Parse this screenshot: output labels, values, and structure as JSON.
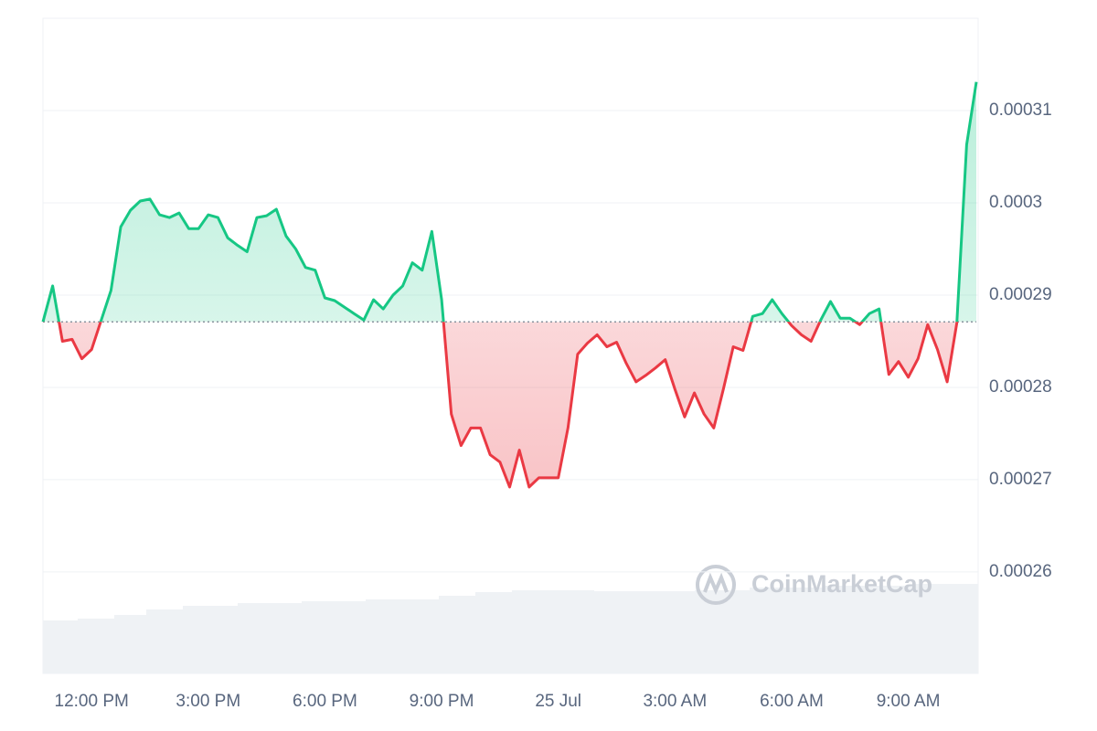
{
  "chart_data": {
    "type": "line",
    "watermark": "CoinMarketCap",
    "x": [
      10.75,
      11,
      11.25,
      11.5,
      11.75,
      12,
      12.25,
      12.5,
      12.75,
      13,
      13.25,
      13.5,
      13.75,
      14,
      14.25,
      14.5,
      14.75,
      15,
      15.25,
      15.5,
      15.75,
      16,
      16.25,
      16.5,
      16.75,
      17,
      17.25,
      17.5,
      17.75,
      18,
      18.25,
      18.5,
      18.75,
      19,
      19.25,
      19.5,
      19.75,
      20,
      20.25,
      20.5,
      20.75,
      21,
      21.25,
      21.5,
      21.75,
      22,
      22.25,
      22.5,
      22.75,
      23,
      23.25,
      23.5,
      23.75,
      24,
      24.25,
      24.5,
      24.75,
      25,
      25.25,
      25.5,
      25.75,
      26,
      26.25,
      26.5,
      26.75,
      27,
      27.25,
      27.5,
      27.75,
      28,
      28.25,
      28.5,
      28.75,
      29,
      29.25,
      29.5,
      29.75,
      30,
      30.25,
      30.5,
      30.75,
      31,
      31.25,
      31.5,
      31.75,
      32,
      32.25,
      32.5,
      32.75,
      33,
      33.25,
      33.5,
      33.75,
      34,
      34.25,
      34.5,
      34.75
    ],
    "values": [
      0.0002871,
      0.000291,
      0.000285,
      0.0002852,
      0.0002831,
      0.0002841,
      0.0002873,
      0.0002905,
      0.0002974,
      0.0002992,
      0.0003002,
      0.0003004,
      0.0002987,
      0.0002984,
      0.0002989,
      0.0002972,
      0.0002972,
      0.0002987,
      0.0002984,
      0.0002962,
      0.0002954,
      0.0002947,
      0.0002984,
      0.0002986,
      0.0002993,
      0.0002964,
      0.000295,
      0.000293,
      0.0002927,
      0.0002897,
      0.0002894,
      0.0002887,
      0.000288,
      0.0002873,
      0.0002895,
      0.0002885,
      0.00029,
      0.000291,
      0.0002935,
      0.0002927,
      0.0002969,
      0.0002895,
      0.0002771,
      0.0002737,
      0.0002756,
      0.0002756,
      0.0002727,
      0.0002719,
      0.0002692,
      0.0002732,
      0.0002692,
      0.0002702,
      0.0002702,
      0.0002702,
      0.0002756,
      0.0002836,
      0.0002848,
      0.0002857,
      0.0002844,
      0.0002849,
      0.0002826,
      0.0002806,
      0.0002813,
      0.0002821,
      0.000283,
      0.0002798,
      0.0002768,
      0.0002794,
      0.0002771,
      0.0002756,
      0.0002799,
      0.0002844,
      0.000284,
      0.0002877,
      0.000288,
      0.0002895,
      0.000288,
      0.0002867,
      0.0002857,
      0.000285,
      0.0002873,
      0.0002893,
      0.0002875,
      0.0002875,
      0.0002868,
      0.000288,
      0.0002885,
      0.0002814,
      0.0002828,
      0.0002811,
      0.0002831,
      0.0002868,
      0.0002841,
      0.0002806,
      0.000287,
      0.0003063,
      0.0003131
    ],
    "up_color": "#16c784",
    "down_color": "#ea3943",
    "xlim": [
      10.75,
      34.75
    ],
    "xticks": [
      {
        "value": 12,
        "label": "12:00 PM"
      },
      {
        "value": 15,
        "label": "3:00 PM"
      },
      {
        "value": 18,
        "label": "6:00 PM"
      },
      {
        "value": 21,
        "label": "9:00 PM"
      },
      {
        "value": 24,
        "label": "25 Jul"
      },
      {
        "value": 27,
        "label": "3:00 AM"
      },
      {
        "value": 30,
        "label": "6:00 AM"
      },
      {
        "value": 33,
        "label": "9:00 AM"
      }
    ],
    "ylim": [
      0.000249,
      0.00032
    ],
    "yticks": [
      0.00026,
      0.00027,
      0.00028,
      0.00029,
      0.0003,
      0.00031
    ],
    "grid": true
  }
}
